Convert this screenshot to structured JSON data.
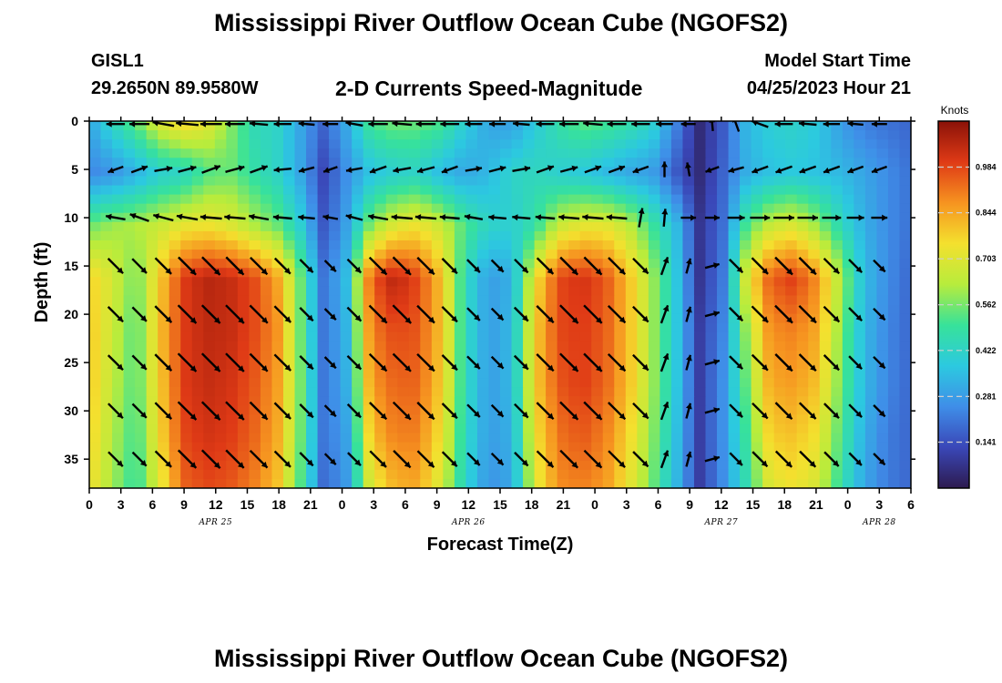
{
  "header": {
    "title": "Mississippi River Outflow Ocean Cube (NGOFS2)",
    "station": "GISL1",
    "coords": "29.2650N  89.9580W",
    "subtitle": "2-D Currents Speed-Magnitude",
    "start_label": "Model Start Time",
    "start_value": "04/25/2023 Hour 21"
  },
  "footer": {
    "title": "Mississippi River Outflow Ocean Cube (NGOFS2)"
  },
  "colors": {
    "colormap": [
      "#2d1b4f",
      "#3a47b8",
      "#3f8ee8",
      "#2cc9e0",
      "#37e29a",
      "#b8ec3c",
      "#f4e02e",
      "#f69320",
      "#df3a16",
      "#8a1208"
    ]
  },
  "chart_data": {
    "type": "heatmap",
    "title": "2-D Currents Speed-Magnitude",
    "xlabel": "Forecast Time(Z)",
    "ylabel": "Depth (ft)",
    "xlim": [
      0,
      78
    ],
    "ylim": [
      0,
      38
    ],
    "x_tick_labels": [
      "0",
      "3",
      "6",
      "9",
      "12",
      "15",
      "18",
      "21",
      "0",
      "3",
      "6",
      "9",
      "12",
      "15",
      "18",
      "21",
      "0",
      "3",
      "6",
      "9",
      "12",
      "15",
      "18",
      "21",
      "0",
      "3",
      "6"
    ],
    "y_ticks": [
      0,
      5,
      10,
      15,
      20,
      25,
      30,
      35
    ],
    "y_tick_labels": [
      "0",
      "5",
      "10",
      "15",
      "20",
      "25",
      "30",
      "35"
    ],
    "date_labels": [
      {
        "text": "APR 25",
        "hour": 12
      },
      {
        "text": "APR 26",
        "hour": 36
      },
      {
        "text": "APR 27",
        "hour": 60
      },
      {
        "text": "APR 28",
        "hour": 75
      }
    ],
    "colorbar": {
      "label": "Knots",
      "ticks": [
        "0.141",
        "0.281",
        "0.422",
        "0.562",
        "0.703",
        "0.844",
        "0.984"
      ],
      "tick_values": [
        0.141,
        0.281,
        0.422,
        0.562,
        0.703,
        0.844,
        0.984
      ],
      "range": [
        0.0,
        1.125
      ]
    },
    "depth_rows": [
      0,
      5,
      10,
      15,
      20,
      25,
      30,
      35
    ],
    "speed_grid": [
      [
        0.3,
        0.44,
        0.55,
        0.7,
        0.78,
        0.72,
        0.58,
        0.45,
        0.42,
        0.3,
        0.18,
        0.32,
        0.52,
        0.56,
        0.55,
        0.52,
        0.4,
        0.3,
        0.28,
        0.38,
        0.48,
        0.54,
        0.52,
        0.48,
        0.42,
        0.24,
        0.05,
        0.16,
        0.34,
        0.4,
        0.42,
        0.38,
        0.28,
        0.22,
        0.2,
        0.18
      ],
      [
        0.24,
        0.26,
        0.32,
        0.4,
        0.42,
        0.52,
        0.55,
        0.48,
        0.42,
        0.3,
        0.12,
        0.26,
        0.36,
        0.4,
        0.42,
        0.34,
        0.3,
        0.34,
        0.42,
        0.44,
        0.4,
        0.38,
        0.34,
        0.3,
        0.28,
        0.16,
        0.05,
        0.18,
        0.32,
        0.36,
        0.38,
        0.36,
        0.34,
        0.3,
        0.25,
        0.2
      ],
      [
        0.55,
        0.6,
        0.62,
        0.66,
        0.72,
        0.74,
        0.7,
        0.62,
        0.55,
        0.4,
        0.15,
        0.3,
        0.58,
        0.7,
        0.74,
        0.66,
        0.52,
        0.42,
        0.4,
        0.48,
        0.66,
        0.72,
        0.72,
        0.64,
        0.5,
        0.35,
        0.08,
        0.2,
        0.52,
        0.66,
        0.7,
        0.6,
        0.45,
        0.32,
        0.25,
        0.2
      ],
      [
        0.78,
        0.68,
        0.55,
        0.78,
        1.0,
        1.06,
        1.04,
        0.98,
        0.85,
        0.55,
        0.2,
        0.36,
        0.95,
        1.06,
        0.98,
        0.8,
        0.45,
        0.28,
        0.32,
        0.74,
        0.98,
        1.02,
        0.96,
        0.8,
        0.6,
        0.38,
        0.08,
        0.22,
        0.7,
        0.95,
        1.0,
        0.88,
        0.62,
        0.35,
        0.25,
        0.18
      ],
      [
        0.8,
        0.66,
        0.52,
        0.8,
        1.0,
        1.05,
        1.04,
        0.98,
        0.88,
        0.55,
        0.2,
        0.34,
        0.9,
        0.98,
        0.96,
        0.8,
        0.45,
        0.28,
        0.34,
        0.78,
        0.98,
        1.0,
        0.95,
        0.8,
        0.6,
        0.38,
        0.1,
        0.24,
        0.6,
        0.88,
        0.9,
        0.84,
        0.58,
        0.34,
        0.24,
        0.18
      ],
      [
        0.8,
        0.64,
        0.52,
        0.78,
        1.0,
        1.04,
        1.02,
        0.96,
        0.86,
        0.56,
        0.2,
        0.33,
        0.86,
        0.94,
        0.94,
        0.78,
        0.45,
        0.28,
        0.34,
        0.78,
        0.96,
        1.0,
        0.94,
        0.8,
        0.6,
        0.38,
        0.1,
        0.26,
        0.55,
        0.84,
        0.86,
        0.8,
        0.56,
        0.34,
        0.24,
        0.18
      ],
      [
        0.78,
        0.62,
        0.5,
        0.76,
        0.98,
        1.02,
        1.0,
        0.94,
        0.84,
        0.55,
        0.2,
        0.3,
        0.8,
        0.9,
        0.9,
        0.74,
        0.44,
        0.28,
        0.32,
        0.74,
        0.92,
        0.96,
        0.9,
        0.76,
        0.58,
        0.36,
        0.1,
        0.26,
        0.5,
        0.78,
        0.8,
        0.74,
        0.52,
        0.32,
        0.22,
        0.18
      ],
      [
        0.75,
        0.6,
        0.48,
        0.7,
        0.94,
        0.98,
        0.96,
        0.9,
        0.8,
        0.52,
        0.18,
        0.28,
        0.7,
        0.82,
        0.84,
        0.68,
        0.42,
        0.26,
        0.3,
        0.7,
        0.88,
        0.9,
        0.86,
        0.72,
        0.55,
        0.34,
        0.1,
        0.25,
        0.46,
        0.7,
        0.74,
        0.68,
        0.48,
        0.3,
        0.22,
        0.18
      ]
    ],
    "current_vectors": {
      "note": "arrow direction in degrees (0 = east, 90 = north); length scales with speed",
      "dir_grid": [
        [
          180,
          180,
          170,
          175,
          180,
          180,
          175,
          180,
          175,
          180,
          170,
          180,
          175,
          180,
          180,
          180,
          180,
          175,
          180,
          180,
          175,
          180,
          180,
          180,
          180,
          95,
          110,
          160,
          180,
          175,
          180,
          175,
          180
        ],
        [
          200,
          20,
          10,
          15,
          20,
          15,
          20,
          185,
          195,
          200,
          190,
          200,
          190,
          195,
          200,
          10,
          15,
          10,
          20,
          15,
          20,
          20,
          200,
          90,
          100,
          200,
          195,
          200,
          200,
          200,
          200,
          200,
          200
        ],
        [
          170,
          160,
          165,
          170,
          175,
          175,
          170,
          175,
          175,
          170,
          165,
          170,
          175,
          175,
          175,
          170,
          175,
          175,
          175,
          175,
          175,
          175,
          80,
          85,
          0,
          0,
          0,
          0,
          0,
          0,
          0,
          0,
          0
        ],
        [
          315,
          315,
          315,
          315,
          315,
          315,
          315,
          315,
          315,
          315,
          315,
          315,
          315,
          315,
          315,
          315,
          315,
          315,
          315,
          315,
          315,
          315,
          315,
          70,
          75,
          15,
          315,
          315,
          315,
          315,
          315,
          315,
          315
        ],
        [
          315,
          315,
          315,
          315,
          315,
          315,
          315,
          315,
          315,
          315,
          315,
          315,
          315,
          315,
          315,
          315,
          315,
          315,
          315,
          315,
          315,
          315,
          315,
          70,
          75,
          15,
          315,
          315,
          315,
          315,
          315,
          315,
          315
        ],
        [
          315,
          315,
          315,
          315,
          315,
          315,
          315,
          315,
          315,
          315,
          315,
          315,
          315,
          315,
          315,
          315,
          315,
          315,
          315,
          315,
          315,
          315,
          315,
          70,
          75,
          15,
          315,
          315,
          315,
          315,
          315,
          315,
          315
        ],
        [
          315,
          315,
          315,
          315,
          315,
          315,
          315,
          315,
          315,
          315,
          315,
          315,
          315,
          315,
          315,
          315,
          315,
          315,
          315,
          315,
          315,
          315,
          315,
          70,
          75,
          15,
          315,
          315,
          315,
          315,
          315,
          315,
          315
        ],
        [
          315,
          315,
          315,
          315,
          315,
          315,
          315,
          315,
          315,
          315,
          315,
          315,
          315,
          315,
          315,
          315,
          315,
          315,
          315,
          315,
          315,
          315,
          315,
          70,
          75,
          15,
          315,
          315,
          315,
          315,
          315,
          315,
          315
        ]
      ]
    }
  }
}
